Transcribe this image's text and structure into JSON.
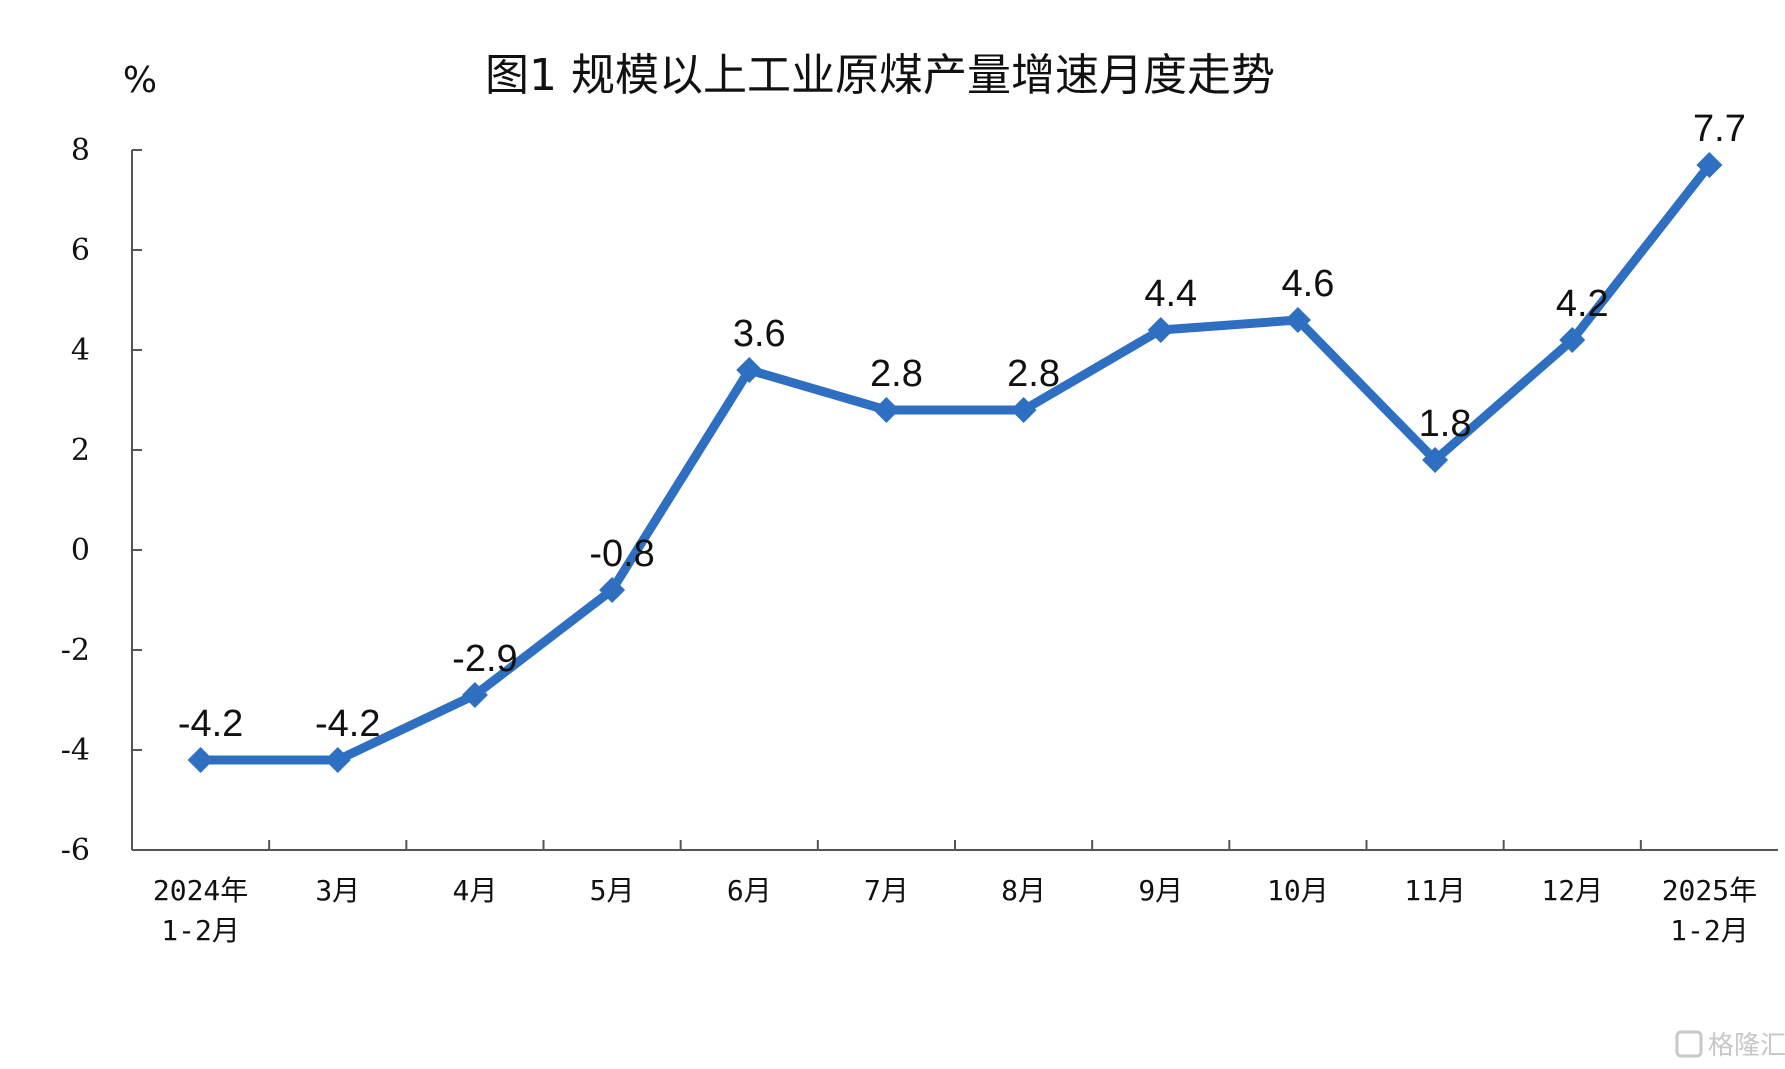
{
  "chart_data": {
    "type": "line",
    "title": "图1  规模以上工业原煤产量增速月度走势",
    "ylabel": "%",
    "xlabel": "",
    "ylim": [
      -6,
      8
    ],
    "yticks": [
      "8",
      "6",
      "4",
      "2",
      "0",
      "-2",
      "-4",
      "-6"
    ],
    "categories": [
      [
        "2024年",
        "1-2月"
      ],
      [
        "3月"
      ],
      [
        "4月"
      ],
      [
        "5月"
      ],
      [
        "6月"
      ],
      [
        "7月"
      ],
      [
        "8月"
      ],
      [
        "9月"
      ],
      [
        "10月"
      ],
      [
        "11月"
      ],
      [
        "12月"
      ],
      [
        "2025年",
        "1-2月"
      ]
    ],
    "series": [
      {
        "values": [
          -4.2,
          -4.2,
          -2.9,
          -0.8,
          3.6,
          2.8,
          2.8,
          4.4,
          4.6,
          1.8,
          4.2,
          7.7
        ],
        "labels": [
          "-4.2",
          "-4.2",
          "-2.9",
          "-0.8",
          "3.6",
          "2.8",
          "2.8",
          "4.4",
          "4.6",
          "1.8",
          "4.2",
          "7.7"
        ]
      }
    ],
    "line_color": "#2E6FC2",
    "grid": false,
    "legend": "none"
  },
  "watermark": "格隆汇"
}
